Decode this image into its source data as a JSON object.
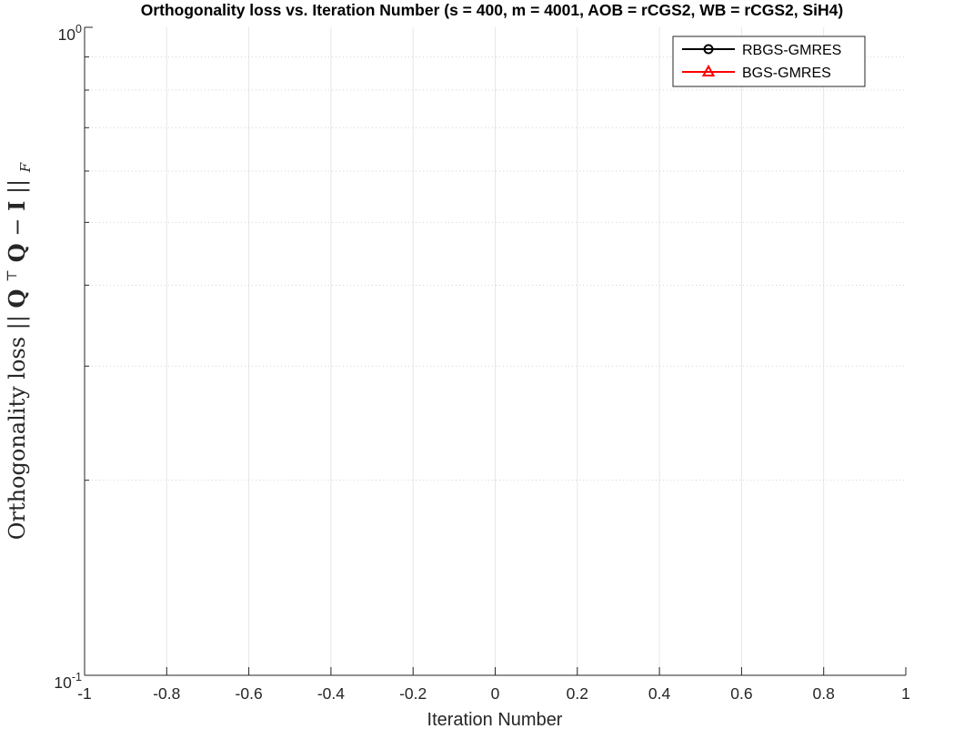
{
  "chart_data": {
    "type": "line",
    "title": "Orthogonality loss vs. Iteration Number (s = 400, m = 4001, AOB = rCGS2, WB = rCGS2, SiH4)",
    "xlabel": "Iteration Number",
    "ylabel": "Orthogonality loss ||Q^T Q − I||_F",
    "ylabel_parts": {
      "prefix": "Orthogonality loss ",
      "norm_open": "||",
      "Q1": "Q",
      "sup": "⊤",
      "Q2": "Q",
      "minus": " − ",
      "I": "I",
      "norm_close": "||",
      "sub": "F"
    },
    "xlim": [
      -1,
      1
    ],
    "ylim": [
      0.1,
      1
    ],
    "yscale": "log",
    "xticks": [
      -1,
      -0.8,
      -0.6,
      -0.4,
      -0.2,
      0,
      0.2,
      0.4,
      0.6,
      0.8,
      1
    ],
    "xtick_labels": [
      "-1",
      "-0.8",
      "-0.6",
      "-0.4",
      "-0.2",
      "0",
      "0.2",
      "0.4",
      "0.6",
      "0.8",
      "1"
    ],
    "yticks": [
      {
        "value": 0.1,
        "base": "10",
        "exp": "-1"
      },
      {
        "value": 1,
        "base": "10",
        "exp": "0"
      }
    ],
    "grid": true,
    "legend_position": "top-right",
    "series": [
      {
        "name": "RBGS-GMRES",
        "color": "#000000",
        "marker": "circle",
        "values": []
      },
      {
        "name": "BGS-GMRES",
        "color": "#ff0000",
        "marker": "triangle",
        "values": []
      }
    ]
  }
}
